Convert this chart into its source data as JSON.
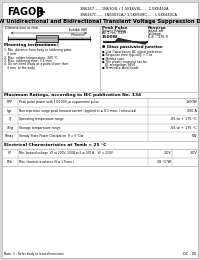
{
  "bg_color": "#d8d8d8",
  "page_bg": "#ffffff",
  "title_line": "1500W Unidirectional and Bidirectional Transient Voltage Suppression Diodes",
  "company": "FAGOR",
  "part_numbers_line1": "1N6267...... 1N6303L / 1.5KE6V8L...... 1.5KE440A",
  "part_numbers_line2": "1N6267C...... 1N6303CA / 1.5KE6V8C...... 1.5KE440CA",
  "dims_label": "Dimensions in mm.",
  "exhibit_label": "Exhibit 480\n(Phoenix)",
  "peak_pulse_lines": [
    "Peak Pulse",
    "Power Rating",
    "At 1 ms. EXP:",
    "1500W"
  ],
  "reverse_lines": [
    "Reverse",
    "stand-off",
    "Voltage",
    "6.8 – 376 V"
  ],
  "mounting_title": "Mounting instructions",
  "mounting_items": [
    "1. Min. distance from body to soldering point:",
    "   4 mm",
    "2. Max. solder temperature: 300 °C",
    "3. Max. soldering time: 3.5 mm",
    "4. Do not bend leads at a point closer than",
    "   3 mm. to the body"
  ],
  "features_title": "● Glass passivated junction",
  "features": [
    "● Low Capacitance AC signal protection",
    "● Response time typically < 1 ns",
    "● Molded case",
    "● The plastic material can be",
    "   UL recognition 94V0",
    "● Terminals: Axial leads"
  ],
  "max_ratings_title": "Maximum Ratings, according to IEC publication No. 134",
  "ratings": [
    {
      "sym": "PPP",
      "desc": "Peak pulse power with 10/1000 μs exponential pulse",
      "val": "1500W"
    },
    {
      "sym": "Ipp",
      "desc": "Non repetitive surge peak forward current (applied in ≤ 8.3 msec.) sinusoidal",
      "val": "200 A"
    },
    {
      "sym": "Tj",
      "desc": "Operating temperature range",
      "val": "-65 to + 175 °C"
    },
    {
      "sym": "Tstg",
      "desc": "Storage temperature range",
      "val": "-65 to + 175 °C"
    },
    {
      "sym": "Pmax",
      "desc": "Steady State Power Dissipation  θ = 5°C/w",
      "val": "5W"
    }
  ],
  "elec_title": "Electrical Characteristics at Tamb = 25 °C",
  "elec_rows": [
    {
      "sym": "VF",
      "desc": "Min. forward voltage  VF at 200V  200Ω at 5 ≤ 100 A    VF = 220V",
      "val1": "2.0V",
      "val2": "3.0V"
    },
    {
      "sym": "Rth",
      "desc": "Max. thermal resistance (θ ≤ 1.9 mm.)",
      "val1": "28 °C/W",
      "val2": ""
    }
  ],
  "footer": "Note: 1 - Refer body to lead dimensions",
  "doc_ref": "DC - 00"
}
